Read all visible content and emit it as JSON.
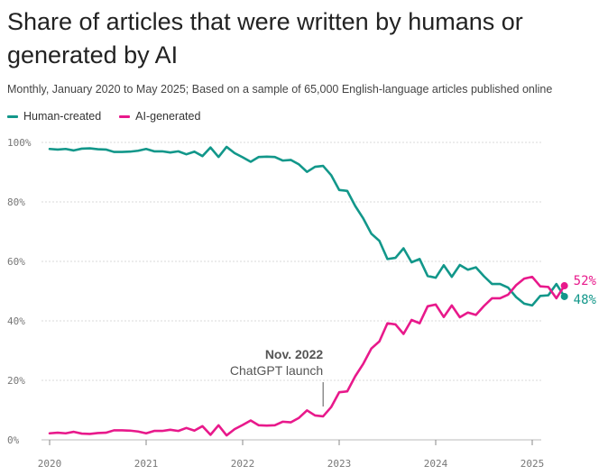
{
  "chart_data": {
    "type": "line",
    "title": "Share of articles that were written by humans or generated by AI",
    "subtitle": "Monthly, January 2020 to May 2025; Based on a sample of 65,000 English-language articles published online",
    "x_start": "2020-01",
    "x_end": "2025-05",
    "x_ticks": [
      "2020",
      "2021",
      "2022",
      "2023",
      "2024",
      "2025"
    ],
    "y_ticks": [
      "0%",
      "20%",
      "40%",
      "60%",
      "80%",
      "100%"
    ],
    "y_tick_values": [
      0,
      20,
      40,
      60,
      80,
      100
    ],
    "ylim": [
      0,
      100
    ],
    "series": [
      {
        "name": "Human-created",
        "color": "#12978a",
        "end_label": "48%",
        "values": [
          97.8,
          97.6,
          97.8,
          97.3,
          97.9,
          98.0,
          97.7,
          97.6,
          96.8,
          96.8,
          96.9,
          97.2,
          97.8,
          97.0,
          97.0,
          96.6,
          97.0,
          96.0,
          96.9,
          95.4,
          98.3,
          95.1,
          98.5,
          96.4,
          95.0,
          93.5,
          95.1,
          95.2,
          95.1,
          93.9,
          94.1,
          92.6,
          90.1,
          91.8,
          92.1,
          89.0,
          84.0,
          83.7,
          78.6,
          74.4,
          69.3,
          66.9,
          60.8,
          61.2,
          64.4,
          59.7,
          60.8,
          55.1,
          54.5,
          58.7,
          54.8,
          58.8,
          57.2,
          58.0,
          55.0,
          52.4,
          52.4,
          51.2,
          48.0,
          45.8,
          45.2,
          48.4,
          48.6,
          52.4,
          48.2
        ]
      },
      {
        "name": "AI-generated",
        "color": "#e8198b",
        "end_label": "52%",
        "values": [
          2.2,
          2.4,
          2.2,
          2.7,
          2.1,
          2.0,
          2.3,
          2.4,
          3.2,
          3.2,
          3.1,
          2.8,
          2.2,
          3.0,
          3.0,
          3.4,
          3.0,
          4.0,
          3.1,
          4.6,
          1.7,
          4.9,
          1.5,
          3.6,
          5.0,
          6.5,
          4.9,
          4.8,
          4.9,
          6.1,
          5.9,
          7.4,
          9.9,
          8.2,
          7.9,
          11.0,
          16.0,
          16.3,
          21.4,
          25.6,
          30.7,
          33.1,
          39.2,
          38.8,
          35.6,
          40.3,
          39.2,
          44.9,
          45.5,
          41.3,
          45.2,
          41.2,
          42.8,
          42.0,
          45.0,
          47.6,
          47.6,
          48.8,
          52.0,
          54.2,
          54.8,
          51.6,
          51.4,
          47.6,
          51.8
        ]
      }
    ],
    "annotation": {
      "x": "2022-11",
      "line1": "Nov. 2022",
      "line2": "ChatGPT launch"
    }
  }
}
